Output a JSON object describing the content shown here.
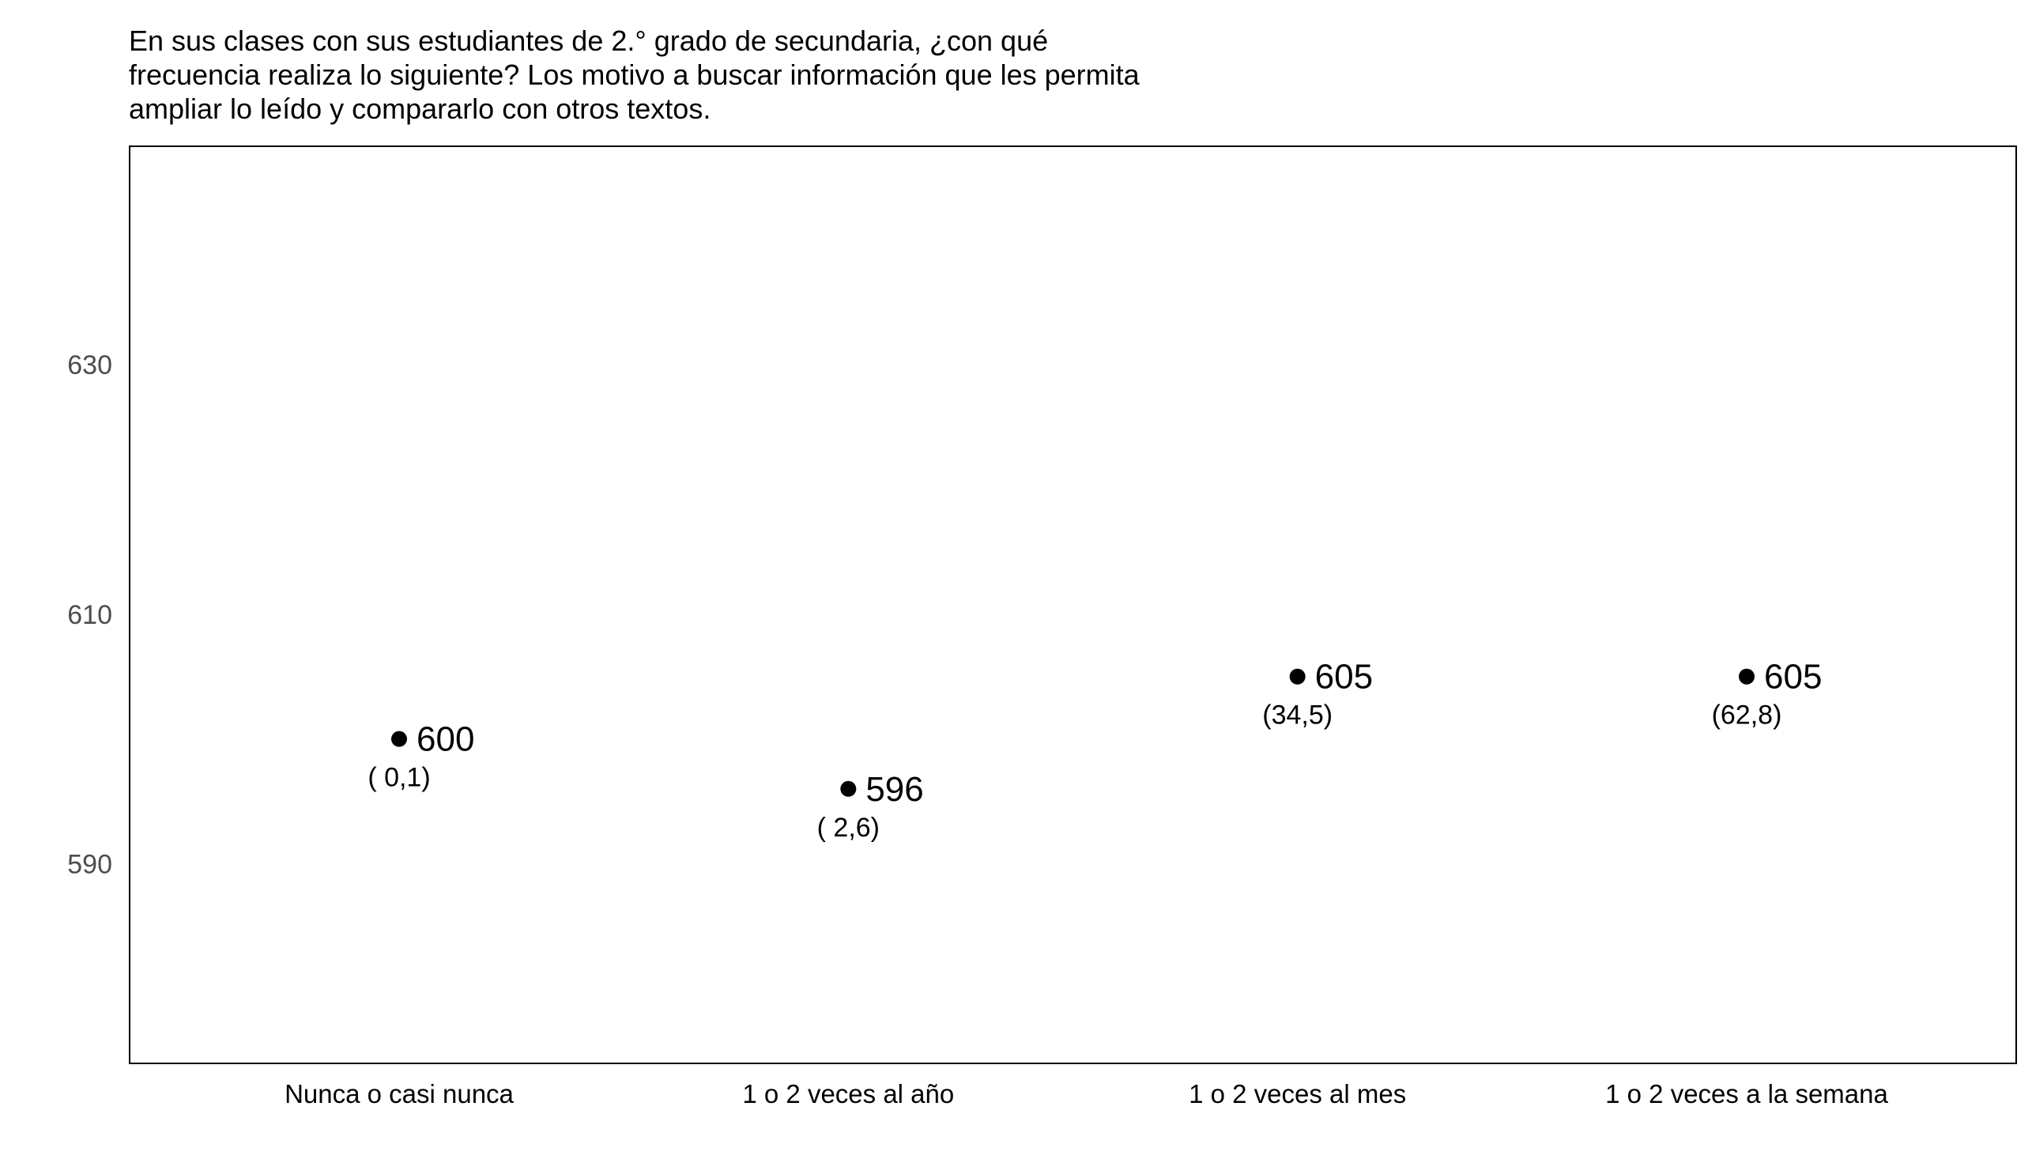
{
  "chart_data": {
    "type": "scatter",
    "title_lines": [
      "En sus clases con sus estudiantes de 2.° grado de secundaria, ¿con qué",
      "frecuencia realiza lo siguiente? Los motivo a buscar información que les permita",
      "ampliar lo leído y compararlo con otros textos."
    ],
    "categories": [
      "Nunca o casi nunca",
      "1 o 2 veces al año",
      "1 o 2 veces al mes",
      "1 o 2 veces a la semana"
    ],
    "values": [
      600,
      596,
      605,
      605
    ],
    "value_labels": [
      "600",
      "596",
      "605",
      "605"
    ],
    "percent_labels": [
      "( 0,1)",
      "( 2,6)",
      "(34,5)",
      "(62,8)"
    ],
    "yticks": [
      590,
      610,
      630
    ],
    "ylim": [
      574,
      647.5
    ],
    "xlabel": "",
    "ylabel": "",
    "grid": false,
    "point_color": "#000000",
    "axis_color": "#000000",
    "tick_label_color": "#4d4d4d"
  }
}
